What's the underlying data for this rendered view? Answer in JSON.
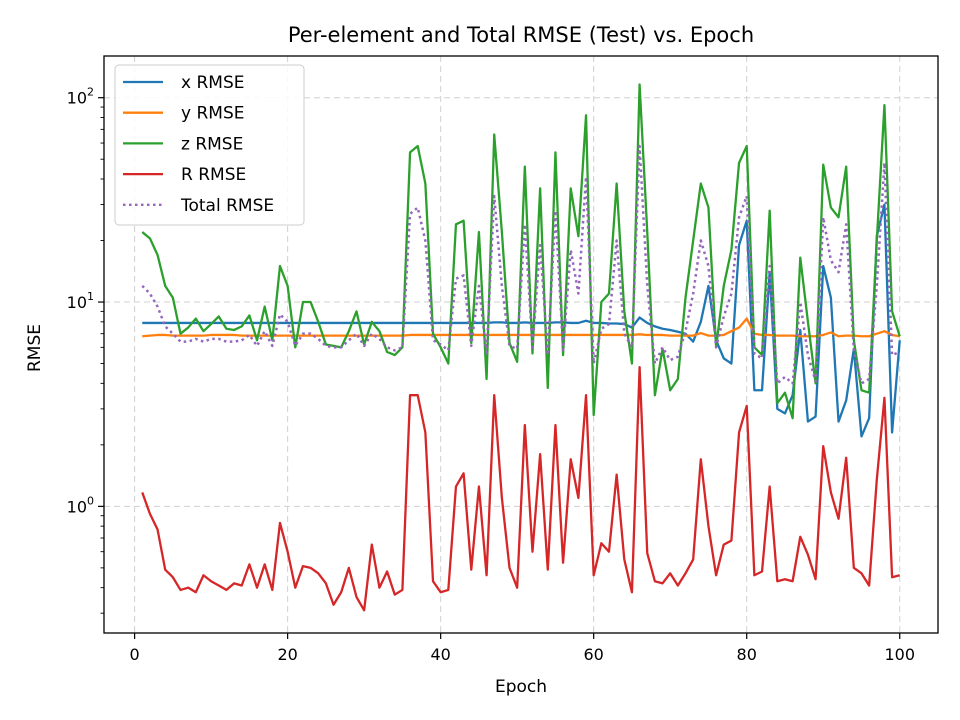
{
  "chart_data": {
    "type": "line",
    "title": "Per-element and Total RMSE (Test) vs. Epoch",
    "xlabel": "Epoch",
    "ylabel": "RMSE",
    "xlim": [
      -4,
      105
    ],
    "ylim": [
      0.24,
      160
    ],
    "yscale": "log",
    "grid": true,
    "legend_position": "top-left",
    "x_ticks": [
      0,
      20,
      40,
      60,
      80,
      100
    ],
    "y_ticks": [
      {
        "value": 1,
        "base": "10",
        "exp": "0"
      },
      {
        "value": 10,
        "base": "10",
        "exp": "1"
      },
      {
        "value": 100,
        "base": "10",
        "exp": "2"
      }
    ],
    "series": [
      {
        "name": "x RMSE",
        "color": "#1f77b4",
        "dash": "solid",
        "values": [
          7.9,
          7.9,
          7.9,
          7.9,
          7.9,
          7.9,
          7.9,
          7.9,
          7.9,
          7.9,
          7.9,
          7.9,
          7.9,
          7.9,
          7.9,
          7.9,
          7.9,
          7.9,
          7.9,
          7.9,
          7.9,
          7.9,
          7.9,
          7.9,
          7.9,
          7.9,
          7.9,
          7.9,
          7.9,
          7.9,
          7.9,
          7.9,
          7.9,
          7.9,
          7.9,
          7.9,
          7.9,
          7.9,
          7.9,
          7.9,
          7.9,
          7.9,
          7.9,
          7.9,
          7.9,
          7.9,
          7.95,
          7.95,
          7.9,
          7.9,
          7.95,
          7.9,
          7.9,
          7.9,
          7.95,
          7.95,
          7.9,
          7.9,
          8.1,
          7.9,
          7.9,
          7.85,
          7.85,
          7.8,
          7.5,
          8.4,
          7.9,
          7.6,
          7.4,
          7.3,
          7.15,
          7.0,
          6.4,
          8.0,
          12.0,
          6.5,
          5.3,
          5.0,
          19.0,
          25.0,
          3.7,
          3.7,
          14.0,
          3.0,
          2.85,
          3.5,
          7.3,
          2.6,
          2.75,
          15.0,
          10.5,
          2.6,
          3.3,
          5.9,
          2.2,
          2.7,
          21.0,
          30.0,
          2.3,
          6.5
        ]
      },
      {
        "name": "y RMSE",
        "color": "#ff7f0e",
        "dash": "solid",
        "values": [
          6.8,
          6.85,
          6.9,
          6.9,
          6.85,
          6.85,
          6.85,
          6.85,
          6.85,
          6.9,
          6.9,
          6.9,
          6.9,
          6.85,
          6.85,
          6.85,
          6.85,
          6.85,
          6.85,
          6.85,
          6.85,
          6.85,
          6.85,
          6.85,
          6.85,
          6.85,
          6.85,
          6.85,
          6.85,
          6.85,
          6.85,
          6.85,
          6.85,
          6.85,
          6.85,
          6.9,
          6.9,
          6.9,
          6.9,
          6.9,
          6.9,
          6.9,
          6.9,
          6.9,
          6.9,
          6.9,
          6.9,
          6.9,
          6.9,
          6.9,
          6.9,
          6.9,
          6.9,
          6.9,
          6.9,
          6.9,
          6.9,
          6.9,
          6.9,
          6.9,
          6.9,
          6.9,
          6.9,
          6.9,
          6.9,
          6.95,
          6.9,
          6.9,
          6.9,
          6.85,
          6.85,
          6.85,
          6.85,
          7.05,
          6.85,
          6.85,
          6.9,
          7.2,
          7.5,
          8.3,
          7.0,
          6.9,
          6.9,
          6.85,
          6.85,
          6.85,
          6.8,
          6.8,
          6.8,
          6.9,
          7.1,
          6.8,
          6.85,
          6.85,
          6.8,
          6.8,
          7.0,
          7.2,
          6.9,
          6.8
        ]
      },
      {
        "name": "z RMSE",
        "color": "#2ca02c",
        "dash": "solid",
        "values": [
          22.0,
          20.5,
          17.0,
          12.0,
          10.5,
          7.0,
          7.5,
          8.3,
          7.2,
          7.8,
          8.5,
          7.4,
          7.3,
          7.6,
          8.6,
          6.5,
          9.5,
          6.5,
          15.0,
          12.0,
          6.0,
          10.0,
          10.0,
          8.0,
          6.2,
          6.1,
          6.0,
          7.2,
          9.0,
          6.2,
          8.0,
          7.2,
          5.7,
          5.5,
          6.0,
          54.0,
          58.0,
          38.0,
          7.0,
          6.0,
          5.0,
          24.0,
          25.0,
          6.3,
          22.0,
          4.2,
          66.0,
          22.0,
          6.3,
          5.1,
          46.0,
          5.6,
          36.0,
          3.8,
          54.0,
          5.5,
          36.0,
          21.0,
          82.0,
          2.8,
          10.0,
          11.0,
          38.0,
          9.0,
          5.0,
          116.0,
          22.0,
          3.5,
          5.9,
          3.7,
          4.2,
          10.5,
          20.0,
          38.0,
          29.0,
          6.0,
          12.0,
          18.0,
          48.0,
          58.0,
          6.0,
          5.5,
          28.0,
          3.2,
          3.6,
          2.7,
          16.5,
          8.0,
          4.0,
          47.0,
          29.0,
          26.0,
          46.0,
          6.5,
          3.7,
          3.6,
          20.0,
          92.0,
          9.0,
          6.8
        ]
      },
      {
        "name": "R RMSE",
        "color": "#d62728",
        "dash": "solid",
        "values": [
          1.17,
          0.92,
          0.77,
          0.49,
          0.45,
          0.39,
          0.4,
          0.38,
          0.46,
          0.43,
          0.41,
          0.39,
          0.42,
          0.41,
          0.52,
          0.4,
          0.52,
          0.39,
          0.83,
          0.6,
          0.4,
          0.51,
          0.5,
          0.47,
          0.42,
          0.33,
          0.38,
          0.5,
          0.36,
          0.31,
          0.65,
          0.4,
          0.48,
          0.37,
          0.39,
          3.5,
          3.5,
          2.3,
          0.43,
          0.38,
          0.39,
          1.25,
          1.45,
          0.49,
          1.25,
          0.46,
          3.5,
          1.1,
          0.5,
          0.4,
          2.5,
          0.6,
          1.8,
          0.49,
          2.5,
          0.53,
          1.7,
          1.1,
          3.5,
          0.46,
          0.66,
          0.6,
          1.43,
          0.55,
          0.38,
          4.8,
          0.59,
          0.43,
          0.42,
          0.47,
          0.41,
          0.47,
          0.55,
          1.7,
          0.8,
          0.46,
          0.65,
          0.68,
          2.3,
          3.1,
          0.46,
          0.48,
          1.25,
          0.43,
          0.44,
          0.43,
          0.71,
          0.58,
          0.44,
          1.97,
          1.17,
          0.87,
          1.73,
          0.5,
          0.47,
          0.41,
          1.35,
          3.4,
          0.45,
          0.46
        ]
      },
      {
        "name": "Total RMSE",
        "color": "#9467bd",
        "dash": "dotted",
        "values": [
          12.0,
          11.0,
          9.5,
          7.6,
          7.0,
          6.4,
          6.4,
          6.6,
          6.4,
          6.6,
          6.6,
          6.4,
          6.4,
          6.5,
          6.9,
          6.1,
          7.2,
          6.1,
          8.7,
          8.0,
          6.1,
          7.0,
          7.0,
          6.6,
          6.1,
          6.0,
          6.0,
          6.5,
          7.0,
          6.1,
          7.0,
          6.6,
          6.0,
          5.8,
          6.0,
          27.0,
          29.0,
          20.0,
          6.5,
          6.2,
          5.8,
          13.0,
          13.5,
          6.1,
          12.0,
          5.5,
          33.0,
          12.0,
          6.1,
          5.9,
          24.0,
          6.0,
          19.0,
          5.5,
          28.0,
          5.8,
          18.0,
          11.0,
          41.0,
          5.0,
          7.4,
          7.8,
          20.0,
          7.0,
          6.0,
          58.0,
          12.0,
          5.0,
          6.0,
          5.2,
          5.4,
          7.2,
          11.0,
          20.0,
          15.0,
          6.0,
          8.5,
          11.0,
          26.0,
          33.0,
          5.6,
          5.3,
          15.0,
          4.0,
          4.3,
          4.0,
          10.0,
          5.5,
          4.1,
          26.0,
          16.0,
          14.0,
          24.0,
          5.8,
          4.0,
          4.2,
          12.0,
          48.0,
          5.5,
          5.7
        ]
      }
    ]
  }
}
